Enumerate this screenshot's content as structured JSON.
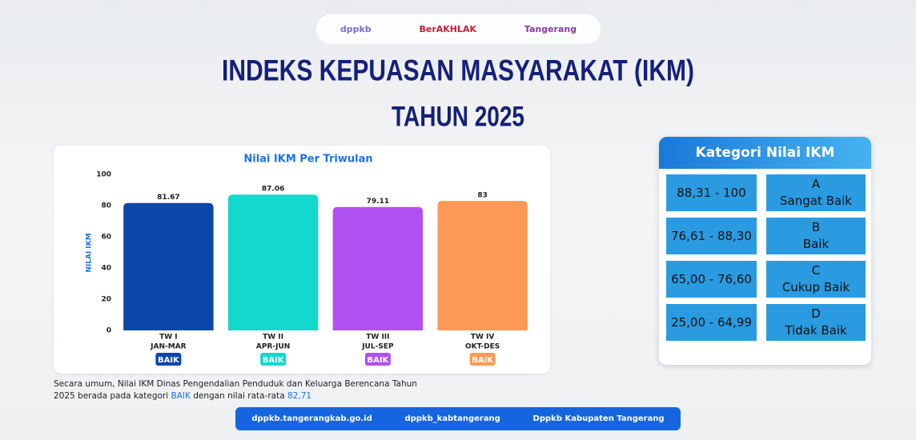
{
  "header": {
    "logos": [
      "dppkb",
      "BerAKHLAK",
      "Tangerang"
    ],
    "title": "INDEKS KEPUASAN MASYARAKAT (IKM)",
    "subtitle": "TAHUN 2025"
  },
  "chart_data": {
    "type": "bar",
    "title": "Nilai IKM Per Triwulan",
    "y_label": "NILAI IKM",
    "categories": [
      "TW I",
      "TW II",
      "TW III",
      "TW IV"
    ],
    "periods": [
      "JAN-MAR",
      "APR-JUN",
      "JUL-SEP",
      "OKT-DES"
    ],
    "badges": [
      "BAIK",
      "BAIK",
      "BAIK",
      "BAIK"
    ],
    "values": [
      81.67,
      87.06,
      79.11,
      83
    ],
    "colors": [
      "#0a47a9",
      "#13d9cc",
      "#b050f0",
      "#ff9955"
    ],
    "ylim": [
      0,
      100
    ],
    "yticks": [
      0,
      20,
      40,
      60,
      80,
      100
    ],
    "grid": false
  },
  "category_table": {
    "title": "Kategori Nilai IKM",
    "rows": [
      [
        "88,31 - 100",
        "A",
        "Sangat Baik"
      ],
      [
        "76,61 - 88,30",
        "B",
        "Baik"
      ],
      [
        "65,00 - 76,60",
        "C",
        "Cukup Baik"
      ],
      [
        "25,00 - 64,99",
        "D",
        "Tidak Baik"
      ]
    ]
  },
  "summary": {
    "text": "Secara umum, Nilai IKM Dinas Pengendalian Penduduk dan Keluarga Berencana Tahun 2025 berada pada kategori",
    "category": "BAIK",
    "middle": "dengan nilai rata-rata",
    "average": "82,71"
  },
  "footer": {
    "website": "dppkb.tangerangkab.go.id",
    "social": "dppkb_kabtangerang",
    "facebook": "Dppkb Kabupaten Tangerang"
  }
}
